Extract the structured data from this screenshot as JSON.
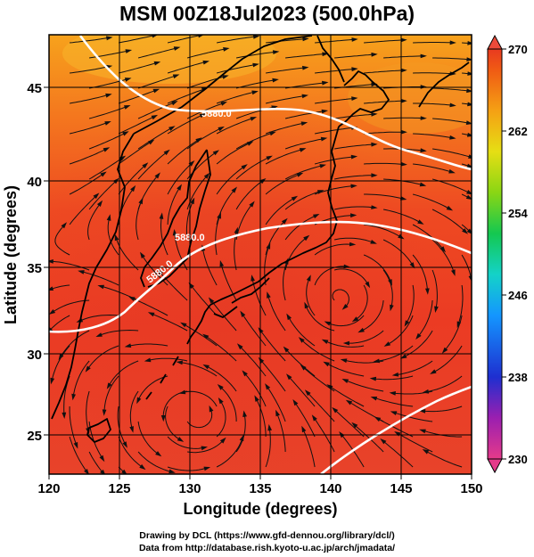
{
  "title": "MSM 00Z18Jul2023 (500.0hPa)",
  "axes": {
    "xlabel": "Longitude (degrees)",
    "ylabel": "Latitude  (degrees)",
    "x_ticks": [
      "120",
      "125",
      "130",
      "135",
      "140",
      "145",
      "150"
    ],
    "y_ticks": [
      "25",
      "30",
      "35",
      "40",
      "45"
    ],
    "xlim": [
      120,
      150
    ],
    "ylim": [
      22.4,
      47.6
    ]
  },
  "colorbar": {
    "ticks": [
      "270",
      "262",
      "254",
      "246",
      "238",
      "230"
    ],
    "range": [
      230,
      270
    ],
    "colors": [
      "#e53a8a",
      "#9b1fb0",
      "#1e2fd0",
      "#1496ff",
      "#14d2c8",
      "#14c850",
      "#8ad614",
      "#e6de14",
      "#f5a014",
      "#f05a14",
      "#e83a20"
    ]
  },
  "map": {
    "contour_labels": [
      "5880.0",
      "5880.0",
      "5880.0"
    ],
    "grid": true
  },
  "credits": {
    "line1": "Drawing by DCL (https://www.gfd-dennou.org/library/dcl/)",
    "line2": "Data from http://database.rish.kyoto-u.ac.jp/arch/jmadata/"
  }
}
